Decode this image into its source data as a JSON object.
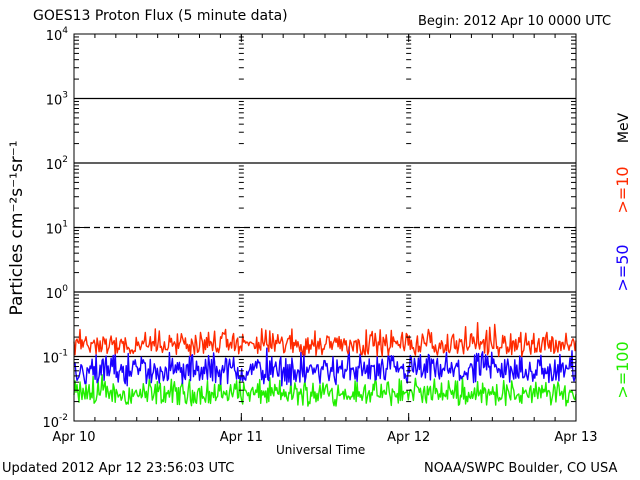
{
  "header": {
    "title": "GOES13 Proton Flux (5 minute data)",
    "begin": "Begin: 2012 Apr 10 0000 UTC"
  },
  "footer": {
    "updated": "Updated 2012 Apr 12 23:56:03 UTC",
    "credit": "NOAA/SWPC Boulder, CO USA"
  },
  "chart_data": {
    "type": "line",
    "title": "GOES13 Proton Flux (5 minute data)",
    "xlabel": "Universal Time",
    "ylabel": "Particles cm⁻²s⁻¹sr⁻¹",
    "yscale": "log",
    "ylim": [
      0.01,
      10000
    ],
    "xlim": [
      "2012-04-10",
      "2012-04-13"
    ],
    "x_ticks": [
      "Apr 10",
      "Apr 11",
      "Apr 12",
      "Apr 13"
    ],
    "y_ticks": [
      {
        "base": "10",
        "exp": "-2"
      },
      {
        "base": "10",
        "exp": "-1"
      },
      {
        "base": "10",
        "exp": "0"
      },
      {
        "base": "10",
        "exp": "1"
      },
      {
        "base": "10",
        "exp": "2"
      },
      {
        "base": "10",
        "exp": "3"
      },
      {
        "base": "10",
        "exp": "4"
      }
    ],
    "threshold_line": {
      "value": 10,
      "style": "dashed"
    },
    "grid": true,
    "legend_placement": "right",
    "legend_unit": "MeV",
    "series": [
      {
        "name": ">=10",
        "color": "#ff2a00",
        "typical_range": [
          0.1,
          0.3
        ]
      },
      {
        "name": ">=50",
        "color": "#1a00ff",
        "typical_range": [
          0.035,
          0.13
        ]
      },
      {
        "name": ">=100",
        "color": "#22ee00",
        "typical_range": [
          0.017,
          0.05
        ]
      }
    ]
  }
}
